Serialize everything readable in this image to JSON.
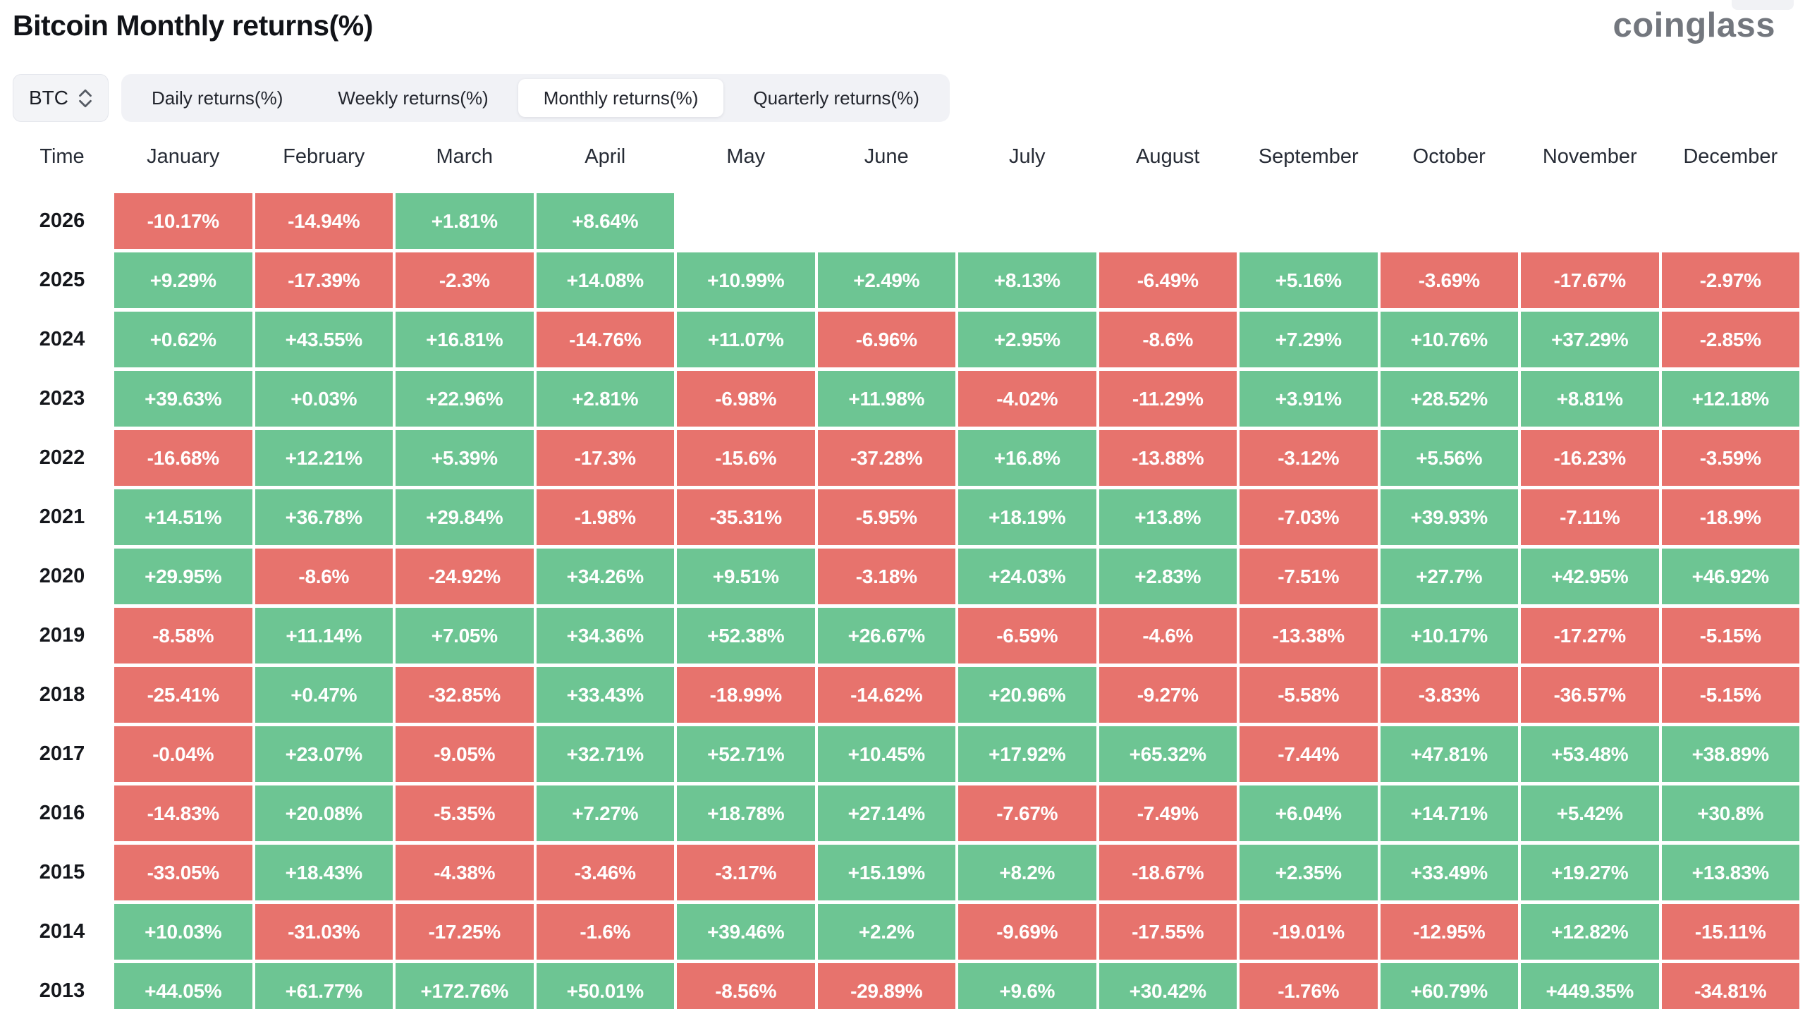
{
  "header": {
    "title": "Bitcoin Monthly returns(%)",
    "logo_text": "coinglass"
  },
  "controls": {
    "symbol": "BTC",
    "tabs": [
      {
        "label": "Daily returns(%)",
        "active": false
      },
      {
        "label": "Weekly returns(%)",
        "active": false
      },
      {
        "label": "Monthly returns(%)",
        "active": true
      },
      {
        "label": "Quarterly returns(%)",
        "active": false
      }
    ]
  },
  "colors": {
    "positive": "#6DC593",
    "negative": "#E7736D",
    "header_text": "#272c36",
    "title_text": "#111318",
    "logo_gray": "#73777e"
  },
  "chart_data": {
    "type": "heatmap",
    "title": "Bitcoin Monthly returns(%)",
    "value_unit": "%",
    "columns": [
      "Time",
      "January",
      "February",
      "March",
      "April",
      "May",
      "June",
      "July",
      "August",
      "September",
      "October",
      "November",
      "December"
    ],
    "rows": [
      {
        "year": "2026",
        "values": [
          "-10.17%",
          "-14.94%",
          "+1.81%",
          "+8.64%",
          "",
          "",
          "",
          "",
          "",
          "",
          "",
          ""
        ]
      },
      {
        "year": "2025",
        "values": [
          "+9.29%",
          "-17.39%",
          "-2.3%",
          "+14.08%",
          "+10.99%",
          "+2.49%",
          "+8.13%",
          "-6.49%",
          "+5.16%",
          "-3.69%",
          "-17.67%",
          "-2.97%"
        ]
      },
      {
        "year": "2024",
        "values": [
          "+0.62%",
          "+43.55%",
          "+16.81%",
          "-14.76%",
          "+11.07%",
          "-6.96%",
          "+2.95%",
          "-8.6%",
          "+7.29%",
          "+10.76%",
          "+37.29%",
          "-2.85%"
        ]
      },
      {
        "year": "2023",
        "values": [
          "+39.63%",
          "+0.03%",
          "+22.96%",
          "+2.81%",
          "-6.98%",
          "+11.98%",
          "-4.02%",
          "-11.29%",
          "+3.91%",
          "+28.52%",
          "+8.81%",
          "+12.18%"
        ]
      },
      {
        "year": "2022",
        "values": [
          "-16.68%",
          "+12.21%",
          "+5.39%",
          "-17.3%",
          "-15.6%",
          "-37.28%",
          "+16.8%",
          "-13.88%",
          "-3.12%",
          "+5.56%",
          "-16.23%",
          "-3.59%"
        ]
      },
      {
        "year": "2021",
        "values": [
          "+14.51%",
          "+36.78%",
          "+29.84%",
          "-1.98%",
          "-35.31%",
          "-5.95%",
          "+18.19%",
          "+13.8%",
          "-7.03%",
          "+39.93%",
          "-7.11%",
          "-18.9%"
        ]
      },
      {
        "year": "2020",
        "values": [
          "+29.95%",
          "-8.6%",
          "-24.92%",
          "+34.26%",
          "+9.51%",
          "-3.18%",
          "+24.03%",
          "+2.83%",
          "-7.51%",
          "+27.7%",
          "+42.95%",
          "+46.92%"
        ]
      },
      {
        "year": "2019",
        "values": [
          "-8.58%",
          "+11.14%",
          "+7.05%",
          "+34.36%",
          "+52.38%",
          "+26.67%",
          "-6.59%",
          "-4.6%",
          "-13.38%",
          "+10.17%",
          "-17.27%",
          "-5.15%"
        ]
      },
      {
        "year": "2018",
        "values": [
          "-25.41%",
          "+0.47%",
          "-32.85%",
          "+33.43%",
          "-18.99%",
          "-14.62%",
          "+20.96%",
          "-9.27%",
          "-5.58%",
          "-3.83%",
          "-36.57%",
          "-5.15%"
        ]
      },
      {
        "year": "2017",
        "values": [
          "-0.04%",
          "+23.07%",
          "-9.05%",
          "+32.71%",
          "+52.71%",
          "+10.45%",
          "+17.92%",
          "+65.32%",
          "-7.44%",
          "+47.81%",
          "+53.48%",
          "+38.89%"
        ]
      },
      {
        "year": "2016",
        "values": [
          "-14.83%",
          "+20.08%",
          "-5.35%",
          "+7.27%",
          "+18.78%",
          "+27.14%",
          "-7.67%",
          "-7.49%",
          "+6.04%",
          "+14.71%",
          "+5.42%",
          "+30.8%"
        ]
      },
      {
        "year": "2015",
        "values": [
          "-33.05%",
          "+18.43%",
          "-4.38%",
          "-3.46%",
          "-3.17%",
          "+15.19%",
          "+8.2%",
          "-18.67%",
          "+2.35%",
          "+33.49%",
          "+19.27%",
          "+13.83%"
        ]
      },
      {
        "year": "2014",
        "values": [
          "+10.03%",
          "-31.03%",
          "-17.25%",
          "-1.6%",
          "+39.46%",
          "+2.2%",
          "-9.69%",
          "-17.55%",
          "-19.01%",
          "-12.95%",
          "+12.82%",
          "-15.11%"
        ]
      },
      {
        "year": "2013",
        "values": [
          "+44.05%",
          "+61.77%",
          "+172.76%",
          "+50.01%",
          "-8.56%",
          "-29.89%",
          "+9.6%",
          "+30.42%",
          "-1.76%",
          "+60.79%",
          "+449.35%",
          "-34.81%"
        ]
      }
    ]
  }
}
